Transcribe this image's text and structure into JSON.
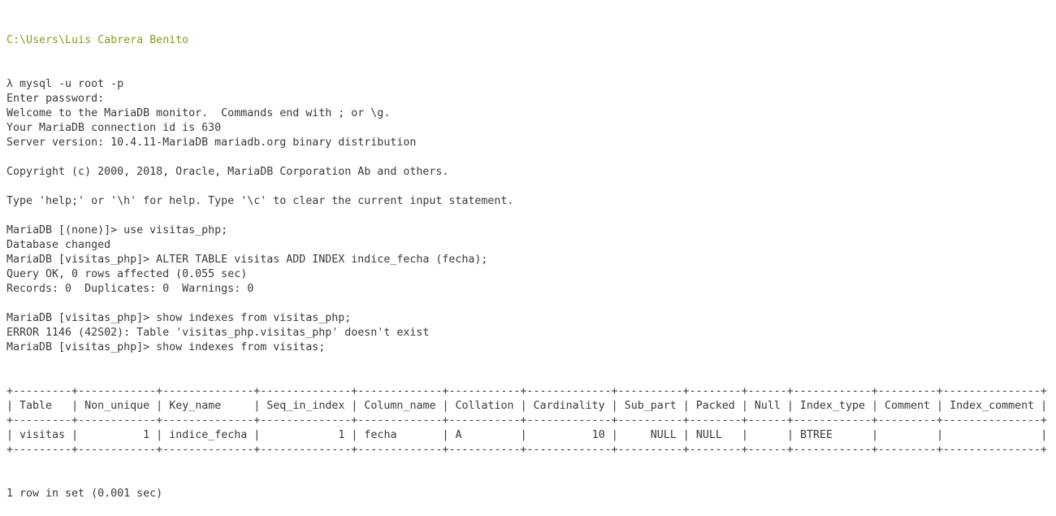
{
  "prompt_path": "C:\\Users\\Luis Cabrera Benito",
  "colors": {
    "path": "#8a9a1c",
    "text": "#3a3a3a",
    "background": "#ffffff"
  },
  "lines": [
    "λ mysql -u root -p",
    "Enter password:",
    "Welcome to the MariaDB monitor.  Commands end with ; or \\g.",
    "Your MariaDB connection id is 630",
    "Server version: 10.4.11-MariaDB mariadb.org binary distribution",
    "",
    "Copyright (c) 2000, 2018, Oracle, MariaDB Corporation Ab and others.",
    "",
    "Type 'help;' or '\\h' for help. Type '\\c' to clear the current input statement.",
    "",
    "MariaDB [(none)]> use visitas_php;",
    "Database changed",
    "MariaDB [visitas_php]> ALTER TABLE visitas ADD INDEX indice_fecha (fecha);",
    "Query OK, 0 rows affected (0.055 sec)",
    "Records: 0  Duplicates: 0  Warnings: 0",
    "",
    "MariaDB [visitas_php]> show indexes from visitas_php;",
    "ERROR 1146 (42S02): Table 'visitas_php.visitas_php' doesn't exist",
    "MariaDB [visitas_php]> show indexes from visitas;"
  ],
  "table": {
    "columns": [
      "Table",
      "Non_unique",
      "Key_name",
      "Seq_in_index",
      "Column_name",
      "Collation",
      "Cardinality",
      "Sub_part",
      "Packed",
      "Null",
      "Index_type",
      "Comment",
      "Index_comment"
    ],
    "rows": [
      [
        "visitas",
        "1",
        "indice_fecha",
        "1",
        "fecha",
        "A",
        "10",
        "NULL",
        "NULL",
        "",
        "BTREE",
        "",
        ""
      ]
    ]
  },
  "footer": "1 row in set (0.001 sec)"
}
